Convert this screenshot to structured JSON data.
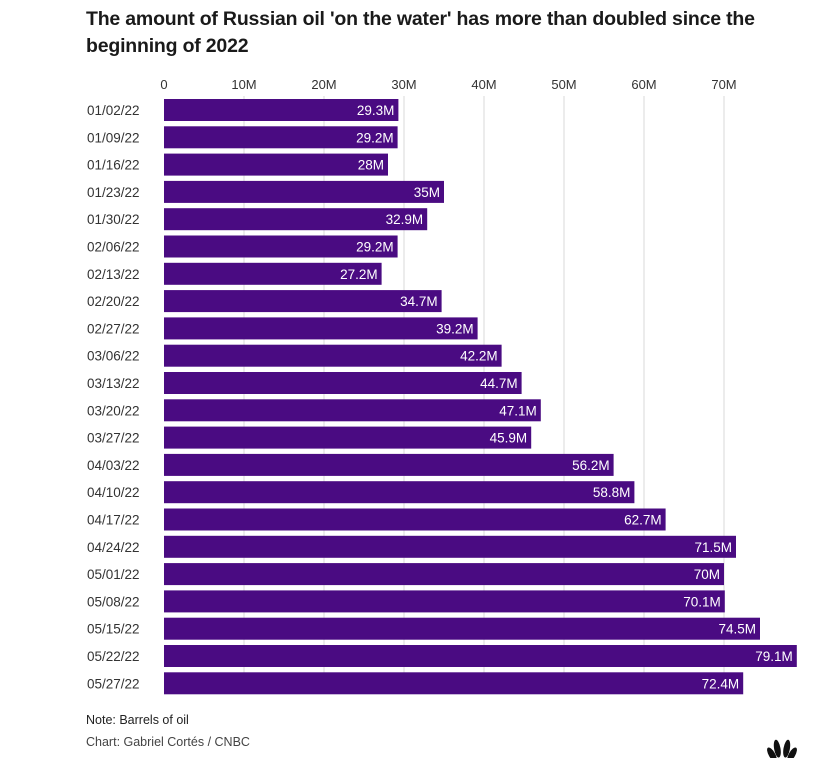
{
  "chart_data": {
    "type": "bar",
    "orientation": "horizontal",
    "title": "The amount of Russian oil 'on the water' has more than doubled since the beginning of 2022",
    "xlabel": "",
    "ylabel": "",
    "xlim": [
      0,
      80
    ],
    "x_ticks": [
      0,
      10,
      20,
      30,
      40,
      50,
      60,
      70
    ],
    "x_tick_labels": [
      "0",
      "10M",
      "20M",
      "30M",
      "40M",
      "50M",
      "60M",
      "70M"
    ],
    "grid": true,
    "units": "million barrels",
    "categories": [
      "01/02/22",
      "01/09/22",
      "01/16/22",
      "01/23/22",
      "01/30/22",
      "02/06/22",
      "02/13/22",
      "02/20/22",
      "02/27/22",
      "03/06/22",
      "03/13/22",
      "03/20/22",
      "03/27/22",
      "04/03/22",
      "04/10/22",
      "04/17/22",
      "04/24/22",
      "05/01/22",
      "05/08/22",
      "05/15/22",
      "05/22/22",
      "05/27/22"
    ],
    "values": [
      29.3,
      29.2,
      28,
      35,
      32.9,
      29.2,
      27.2,
      34.7,
      39.2,
      42.2,
      44.7,
      47.1,
      45.9,
      56.2,
      58.8,
      62.7,
      71.5,
      70,
      70.1,
      74.5,
      79.1,
      72.4
    ],
    "data_labels": [
      "29.3M",
      "29.2M",
      "28M",
      "35M",
      "32.9M",
      "29.2M",
      "27.2M",
      "34.7M",
      "39.2M",
      "42.2M",
      "44.7M",
      "47.1M",
      "45.9M",
      "56.2M",
      "58.8M",
      "62.7M",
      "71.5M",
      "70M",
      "70.1M",
      "74.5M",
      "79.1M",
      "72.4M"
    ],
    "bar_color": "#4a0b82"
  },
  "footer": {
    "note": "Note: Barrels of oil",
    "credit": "Chart: Gabriel Cortés / CNBC",
    "logo_icon": "nbc-peacock-icon"
  }
}
